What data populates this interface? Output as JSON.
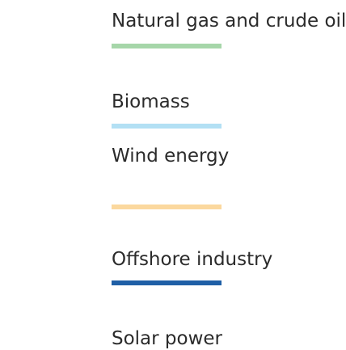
{
  "items": [
    {
      "label": "Natural gas and crude oil",
      "color": "#a6d6a9"
    },
    {
      "label": "Biomass",
      "color": "#b3e0f4"
    },
    {
      "label": "Wind energy",
      "color": "#fbd89e"
    },
    {
      "label": "Offshore industry",
      "color": "#1f5fa6"
    },
    {
      "label": "Solar power"
    }
  ]
}
